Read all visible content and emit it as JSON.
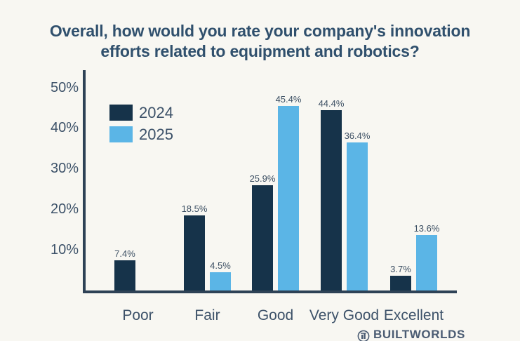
{
  "title": {
    "line1": "Overall, how would you rate your company's innovation",
    "line2": "efforts related to equipment and robotics?"
  },
  "legend": [
    {
      "label": "2024",
      "color": "#16334a"
    },
    {
      "label": "2025",
      "color": "#5bb5e6"
    }
  ],
  "chart_data": {
    "type": "bar",
    "title": "Overall, how would you rate your company's innovation efforts related to equipment and robotics?",
    "categories": [
      "Poor",
      "Fair",
      "Good",
      "Very Good",
      "Excellent"
    ],
    "series": [
      {
        "name": "2024",
        "color": "#16334a",
        "values": [
          7.4,
          18.5,
          25.9,
          44.4,
          3.7
        ],
        "labels": [
          "7.4%",
          "18.5%",
          "25.9%",
          "44.4%",
          "3.7%"
        ]
      },
      {
        "name": "2025",
        "color": "#5bb5e6",
        "values": [
          0,
          4.5,
          45.4,
          36.4,
          13.6
        ],
        "labels": [
          null,
          "4.5%",
          "45.4%",
          "36.4%",
          "13.6%"
        ]
      }
    ],
    "y_axis": {
      "tick_labels": [
        "10%",
        "20%",
        "30%",
        "40%",
        "50%"
      ],
      "tick_values": [
        10,
        20,
        30,
        40,
        50
      ],
      "range": [
        0,
        52
      ],
      "unit": "%"
    },
    "grid": false,
    "legend_position": "top-left-inside",
    "colors": {
      "background": "#f8f7f2",
      "axis": "#2e4256",
      "text": "#3d5269",
      "title": "#30506d"
    }
  },
  "watermark": {
    "text": "BUILTWORLDS",
    "icon": "builtworlds-logo-icon"
  }
}
